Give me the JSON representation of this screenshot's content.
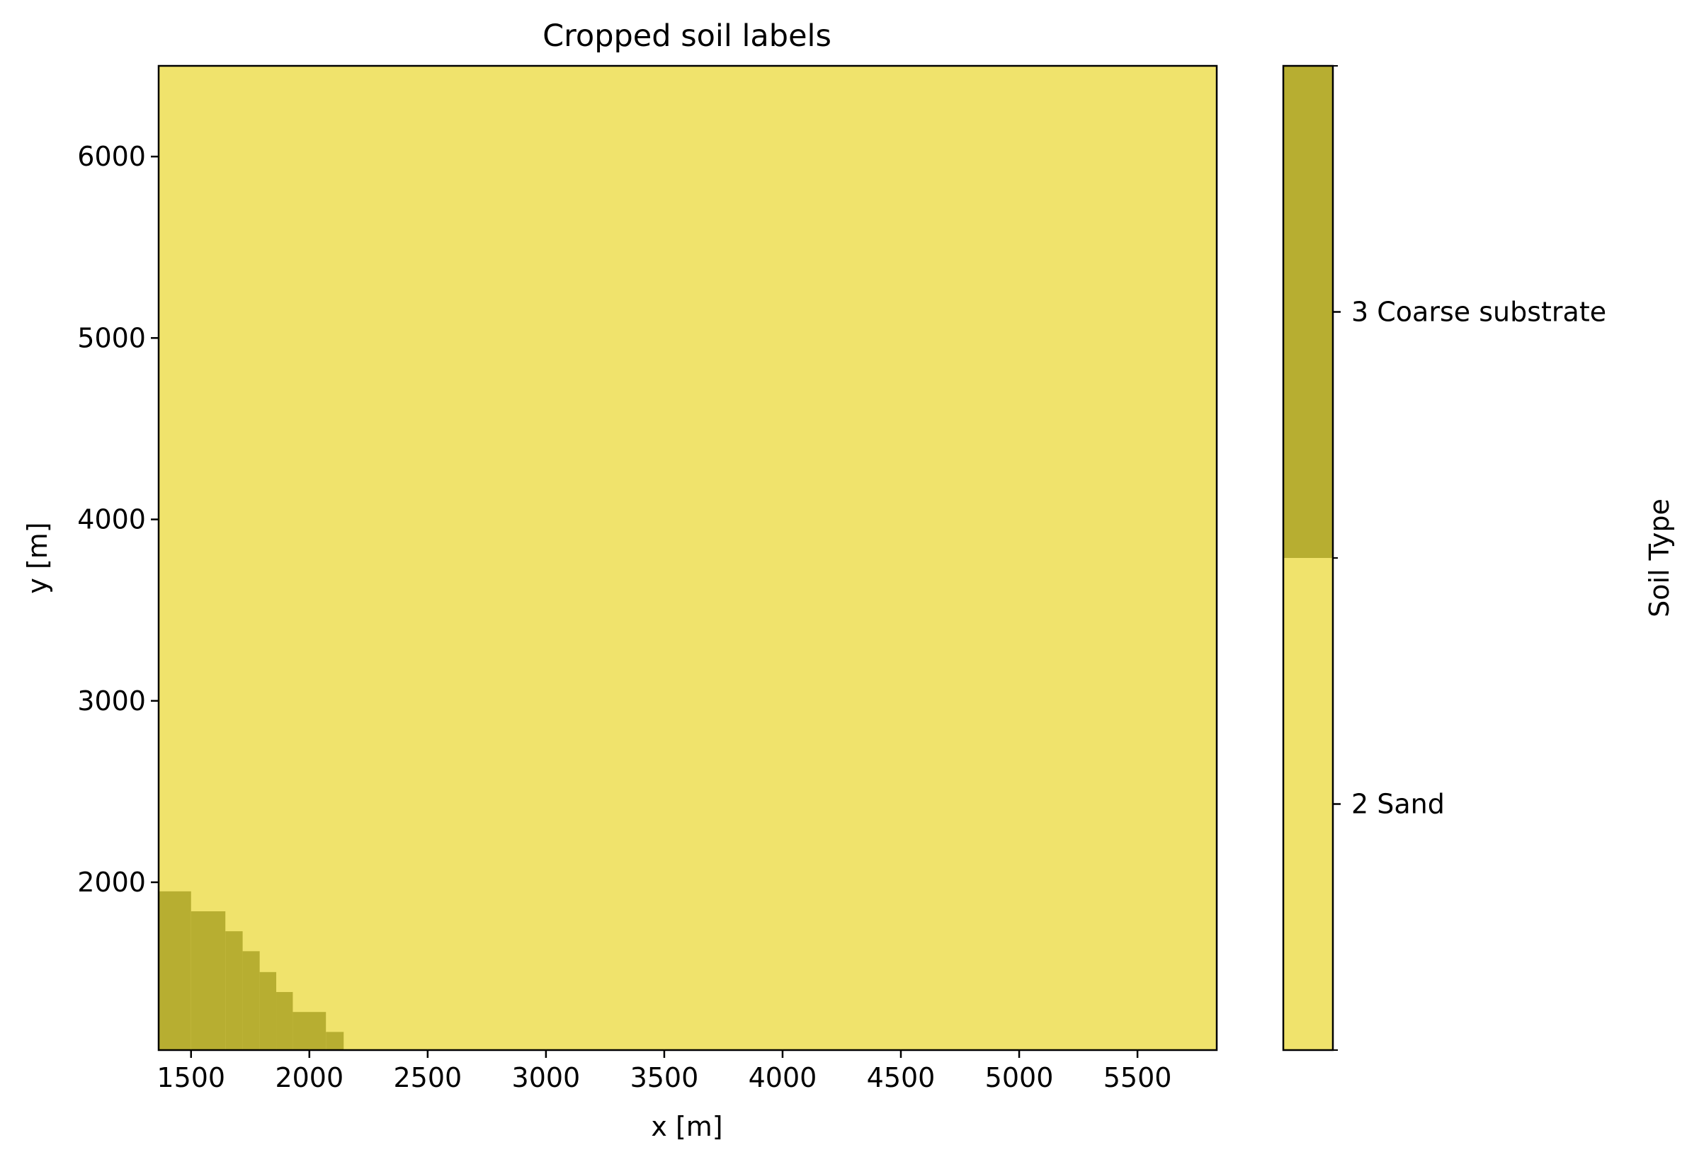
{
  "chart_data": {
    "type": "heatmap",
    "title": "Cropped soil labels",
    "xlabel": "x [m]",
    "ylabel": "y [m]",
    "xlim": [
      1363,
      5835
    ],
    "ylim": [
      1075,
      6500
    ],
    "xticks": [
      1500,
      2000,
      2500,
      3000,
      3500,
      4000,
      4500,
      5000,
      5500
    ],
    "yticks": [
      2000,
      3000,
      4000,
      5000,
      6000
    ],
    "background_class": 2,
    "class_colors": {
      "2": "#f0e36c",
      "3": "#b7ae31"
    },
    "regions": [
      {
        "class": 3,
        "x0": 1363,
        "x1": 1500,
        "y1": 1950
      },
      {
        "class": 3,
        "x0": 1500,
        "x1": 1645,
        "y1": 1840
      },
      {
        "class": 3,
        "x0": 1645,
        "x1": 1718,
        "y1": 1730
      },
      {
        "class": 3,
        "x0": 1718,
        "x1": 1790,
        "y1": 1620
      },
      {
        "class": 3,
        "x0": 1790,
        "x1": 1860,
        "y1": 1505
      },
      {
        "class": 3,
        "x0": 1860,
        "x1": 1930,
        "y1": 1395
      },
      {
        "class": 3,
        "x0": 1930,
        "x1": 2070,
        "y1": 1285
      },
      {
        "class": 3,
        "x0": 2070,
        "x1": 2145,
        "y1": 1175
      }
    ],
    "colorbar": {
      "label": "Soil Type",
      "classes": [
        {
          "value": 2,
          "label": "2 Sand",
          "color": "#f0e36c"
        },
        {
          "value": 3,
          "label": "3 Coarse substrate",
          "color": "#b7ae31"
        }
      ]
    },
    "grid": false
  }
}
